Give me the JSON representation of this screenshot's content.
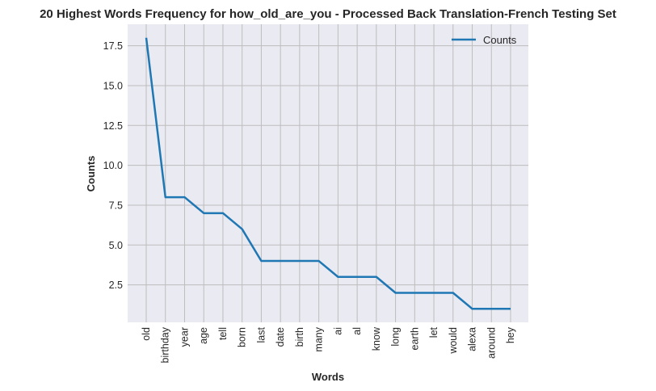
{
  "chart_data": {
    "type": "line",
    "title": "20 Highest Words Frequency for how_old_are_you - Processed Back Translation-French Testing Set",
    "xlabel": "Words",
    "ylabel": "Counts",
    "categories": [
      "old",
      "birthday",
      "year",
      "age",
      "tell",
      "born",
      "last",
      "date",
      "birth",
      "many",
      "ai",
      "al",
      "know",
      "long",
      "earth",
      "let",
      "would",
      "alexa",
      "around",
      "hey"
    ],
    "series": [
      {
        "name": "Counts",
        "values": [
          18,
          8,
          8,
          7,
          7,
          6,
          4,
          4,
          4,
          4,
          3,
          3,
          3,
          2,
          2,
          2,
          2,
          1,
          1,
          1
        ]
      }
    ],
    "ylim": [
      0.15,
      18.85
    ],
    "yticks": [
      "2.5",
      "5.0",
      "7.5",
      "10.0",
      "12.5",
      "15.0",
      "17.5"
    ],
    "grid": true,
    "legend_position": "top-right",
    "colors": {
      "line": "#1f77b4",
      "plot_bg": "#eaeaf2",
      "grid": "#bdbdbd"
    }
  }
}
